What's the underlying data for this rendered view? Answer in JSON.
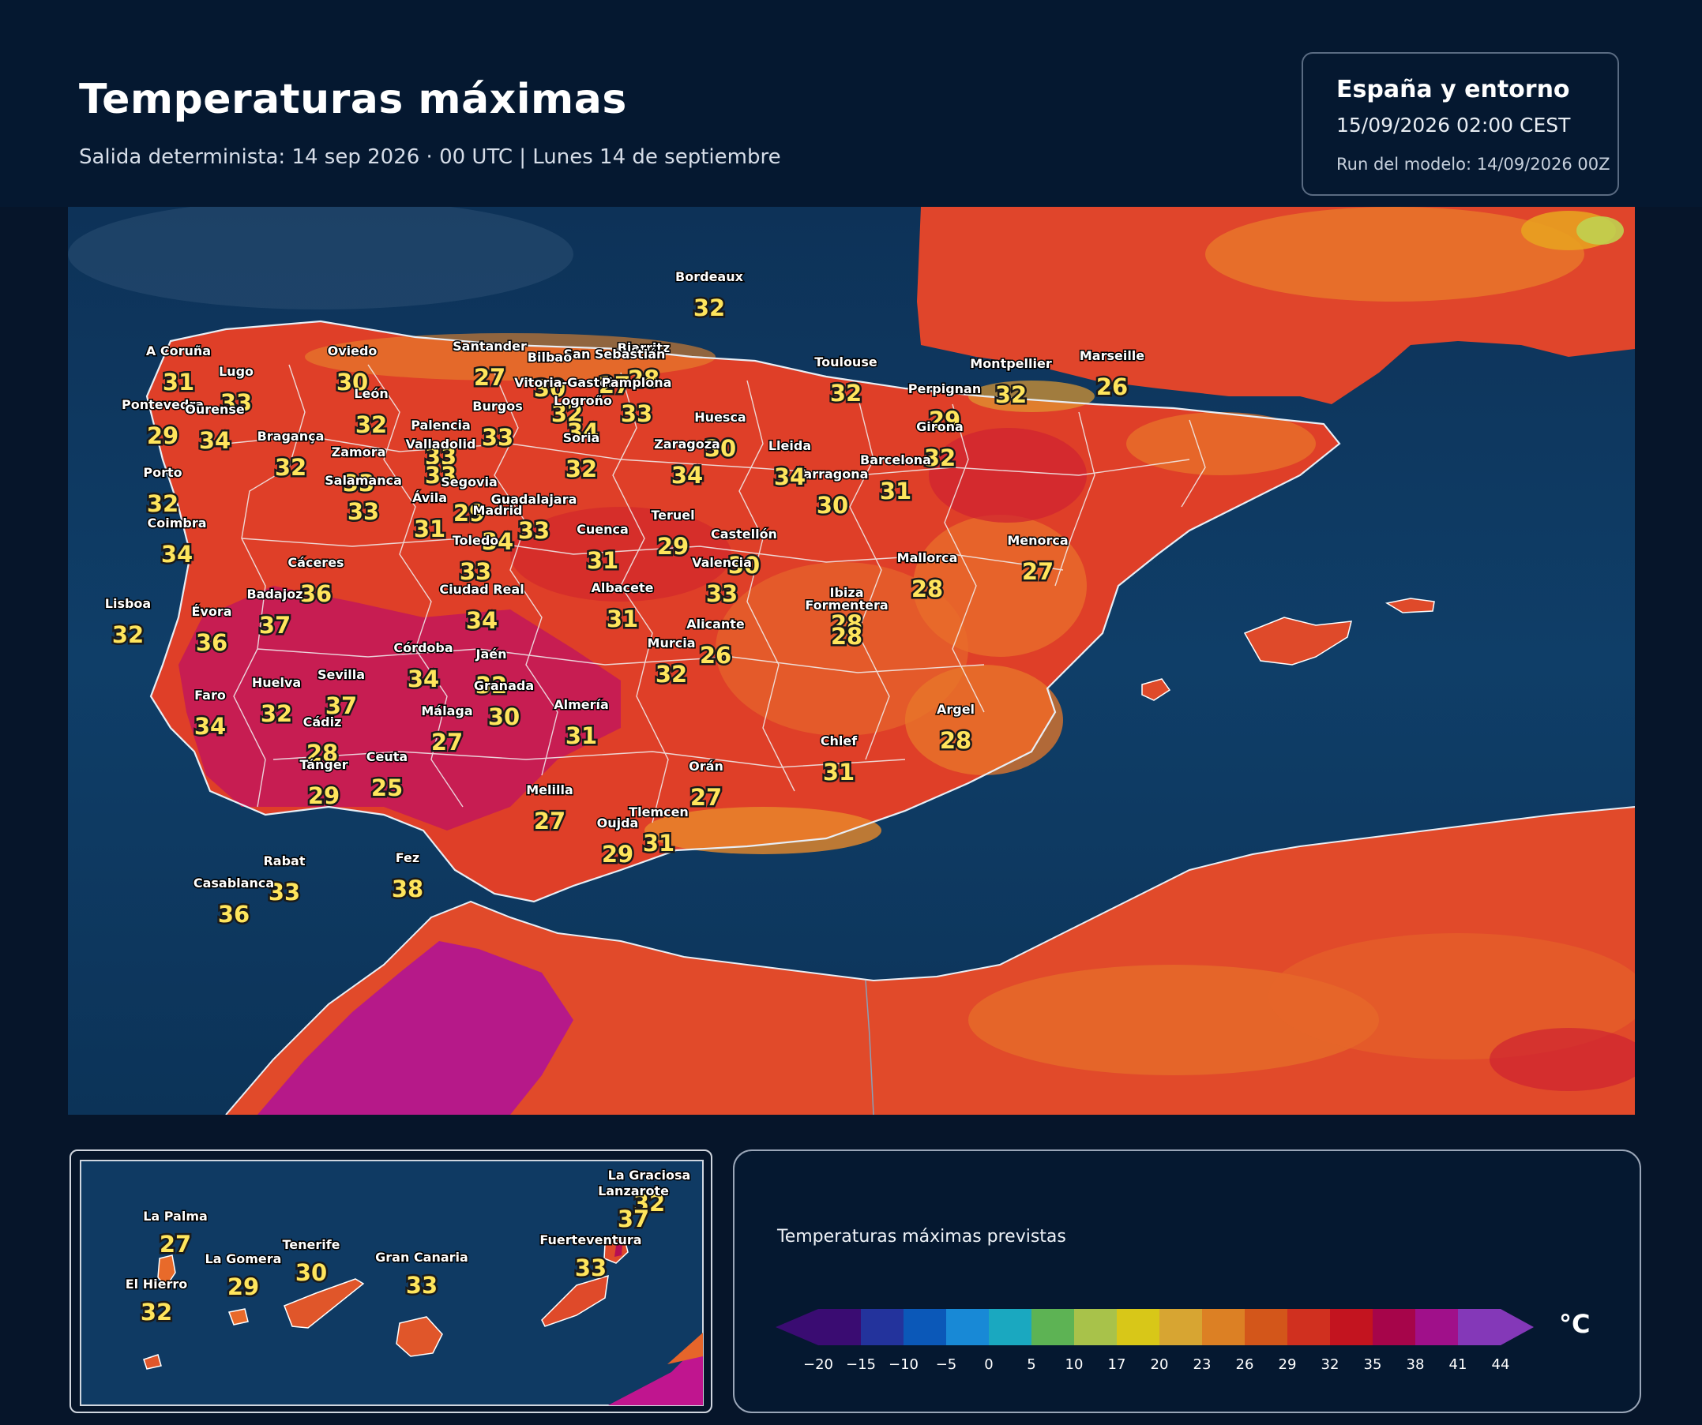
{
  "header": {
    "title": "Temperaturas máximas",
    "subtitle": "Salida determinista: 14 sep 2026 · 00 UTC  |  Lunes 14 de septiembre"
  },
  "info": {
    "region": "España y entorno",
    "valid": "15/09/2026  02:00 CEST",
    "run": "Run del modelo: 14/09/2026 00Z"
  },
  "colors": {
    "sea": "#0f3a63",
    "sea_deep": "#0a2a4d",
    "background": "#06152a",
    "label_temp": "#ffe55c"
  },
  "cities": [
    {
      "name": "Bordeaux",
      "temp": "32"
    },
    {
      "name": "Toulouse",
      "temp": "32"
    },
    {
      "name": "Montpellier",
      "temp": "32"
    },
    {
      "name": "Marseille",
      "temp": "26"
    },
    {
      "name": "Biarritz",
      "temp": "28"
    },
    {
      "name": "San Sebastián",
      "temp": "27"
    },
    {
      "name": "Bilbao",
      "temp": "30"
    },
    {
      "name": "Vitoria-Gasteiz",
      "temp": "32"
    },
    {
      "name": "Pamplona",
      "temp": "33"
    },
    {
      "name": "Logroño",
      "temp": "34"
    },
    {
      "name": "Perpignan",
      "temp": "29"
    },
    {
      "name": "Girona",
      "temp": "32"
    },
    {
      "name": "Barcelona",
      "temp": "31"
    },
    {
      "name": "Tarragona",
      "temp": "30"
    },
    {
      "name": "Lleida",
      "temp": "34"
    },
    {
      "name": "Huesca",
      "temp": "30"
    },
    {
      "name": "Zaragoza",
      "temp": "34"
    },
    {
      "name": "A Coruña",
      "temp": "31"
    },
    {
      "name": "Lugo",
      "temp": "33"
    },
    {
      "name": "Oviedo",
      "temp": "30"
    },
    {
      "name": "Santander",
      "temp": "27"
    },
    {
      "name": "Pontevedra",
      "temp": "29"
    },
    {
      "name": "Ourense",
      "temp": "34"
    },
    {
      "name": "León",
      "temp": "32"
    },
    {
      "name": "Burgos",
      "temp": "33"
    },
    {
      "name": "Palencia",
      "temp": "33"
    },
    {
      "name": "Valladolid",
      "temp": "33"
    },
    {
      "name": "Soria",
      "temp": "32"
    },
    {
      "name": "Bragança",
      "temp": "32"
    },
    {
      "name": "Zamora",
      "temp": "33"
    },
    {
      "name": "Salamanca",
      "temp": "33"
    },
    {
      "name": "Segovia",
      "temp": "29"
    },
    {
      "name": "Ávila",
      "temp": "31"
    },
    {
      "name": "Guadalajara",
      "temp": "33"
    },
    {
      "name": "Madrid",
      "temp": "34"
    },
    {
      "name": "Porto",
      "temp": "32"
    },
    {
      "name": "Coimbra",
      "temp": "34"
    },
    {
      "name": "Teruel",
      "temp": "29"
    },
    {
      "name": "Castellón",
      "temp": "30"
    },
    {
      "name": "Cuenca",
      "temp": "31"
    },
    {
      "name": "Toledo",
      "temp": "33"
    },
    {
      "name": "Valencia",
      "temp": "33"
    },
    {
      "name": "Cáceres",
      "temp": "36"
    },
    {
      "name": "Badajoz",
      "temp": "37"
    },
    {
      "name": "Lisboa",
      "temp": "32"
    },
    {
      "name": "Évora",
      "temp": "36"
    },
    {
      "name": "Ciudad Real",
      "temp": "34"
    },
    {
      "name": "Albacete",
      "temp": "31"
    },
    {
      "name": "Alicante",
      "temp": "26"
    },
    {
      "name": "Murcia",
      "temp": "32"
    },
    {
      "name": "Córdoba",
      "temp": "34"
    },
    {
      "name": "Jaén",
      "temp": "32"
    },
    {
      "name": "Granada",
      "temp": "30"
    },
    {
      "name": "Sevilla",
      "temp": "37"
    },
    {
      "name": "Huelva",
      "temp": "32"
    },
    {
      "name": "Faro",
      "temp": "34"
    },
    {
      "name": "Cádiz",
      "temp": "28"
    },
    {
      "name": "Málaga",
      "temp": "27"
    },
    {
      "name": "Almería",
      "temp": "31"
    },
    {
      "name": "Tánger",
      "temp": "29"
    },
    {
      "name": "Ceuta",
      "temp": "25"
    },
    {
      "name": "Melilla",
      "temp": "27"
    },
    {
      "name": "Orán",
      "temp": "27"
    },
    {
      "name": "Oujda",
      "temp": "29"
    },
    {
      "name": "Tlemcen",
      "temp": "31"
    },
    {
      "name": "Chlef",
      "temp": "31"
    },
    {
      "name": "Argel",
      "temp": "28"
    },
    {
      "name": "Rabat",
      "temp": "33"
    },
    {
      "name": "Casablanca",
      "temp": "36"
    },
    {
      "name": "Fez",
      "temp": "38"
    },
    {
      "name": "Mallorca",
      "temp": "28"
    },
    {
      "name": "Menorca",
      "temp": "27"
    },
    {
      "name": "Ibiza",
      "temp": "28"
    },
    {
      "name": "Formentera",
      "temp": "28"
    }
  ],
  "canarias": [
    {
      "name": "La Graciosa",
      "temp": "32"
    },
    {
      "name": "Lanzarote",
      "temp": "37"
    },
    {
      "name": "La Palma",
      "temp": "27"
    },
    {
      "name": "Tenerife",
      "temp": "30"
    },
    {
      "name": "La Gomera",
      "temp": "29"
    },
    {
      "name": "Gran Canaria",
      "temp": "33"
    },
    {
      "name": "Fuerteventura",
      "temp": "33"
    },
    {
      "name": "El Hierro",
      "temp": "32"
    }
  ],
  "legend": {
    "title": "Temperaturas máximas previstas",
    "unit": "°C",
    "ticks": [
      "−20",
      "−15",
      "−10",
      "−5",
      "0",
      "5",
      "10",
      "17",
      "20",
      "23",
      "26",
      "29",
      "32",
      "35",
      "38",
      "41",
      "44"
    ],
    "colors": [
      "#3a0c72",
      "#23339c",
      "#0b58b8",
      "#1889d6",
      "#1aa8c0",
      "#5db354",
      "#a8c24a",
      "#d8c718",
      "#d7a532",
      "#dc8024",
      "#d3561a",
      "#d0301f",
      "#c3141f",
      "#a6054a",
      "#a0108a",
      "#8438b8"
    ],
    "min_color": "#3a0c72",
    "max_color": "#8438b8"
  }
}
